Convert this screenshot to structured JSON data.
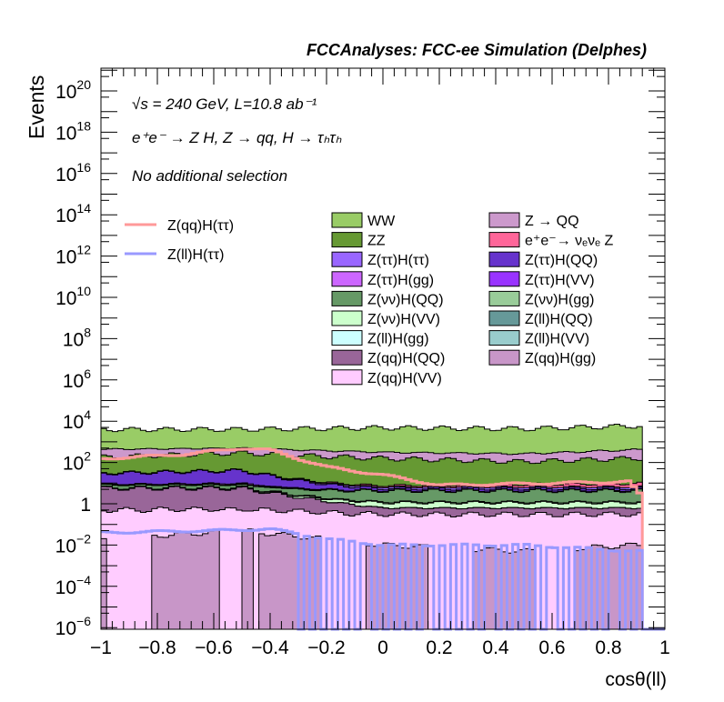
{
  "chart_data": {
    "type": "bar",
    "stacked": true,
    "title": "FCCAnalyses: FCC-ee Simulation (Delphes)",
    "xlabel": "cosθ(ll)",
    "ylabel": "Events",
    "xlim": [
      -1,
      1
    ],
    "ylim": [
      1e-06,
      1e+21
    ],
    "yscale": "log",
    "bins": 100,
    "xtick_labels": [
      "−1",
      "−0.8",
      "−0.6",
      "−0.4",
      "−0.2",
      "0",
      "0.2",
      "0.4",
      "0.6",
      "0.8",
      "1"
    ],
    "xticks": [
      -1,
      -0.8,
      -0.6,
      -0.4,
      -0.2,
      0,
      0.2,
      0.4,
      0.6,
      0.8,
      1
    ],
    "ytick_exponents": [
      -6,
      -4,
      -2,
      0,
      2,
      4,
      6,
      8,
      10,
      12,
      14,
      16,
      18,
      20
    ],
    "annotations": {
      "lumi": "√s = 240 GeV, L=10.8 ab⁻¹",
      "process": "e⁺e⁻ → Z H, Z → qq, H → τₕτₕ",
      "selection": "No additional selection"
    },
    "knots_x": [
      -1,
      -0.5,
      0,
      0.5,
      0.9
    ],
    "stack_bottom_to_top": [
      {
        "name": "Z(qq)H(gg)",
        "color": "#c896c8",
        "values": [
          0.02,
          0.05,
          0.01,
          0.005,
          0.01
        ]
      },
      {
        "name": "Z(qq)H(VV)",
        "color": "#ffccff",
        "values": [
          0.5,
          0.5,
          0.3,
          0.3,
          0.3
        ]
      },
      {
        "name": "Z(qq)H(QQ)",
        "color": "#996699",
        "values": [
          5,
          5,
          0.3,
          0.3,
          0.3
        ]
      },
      {
        "name": "Z(ll)H(VV)",
        "color": "#ccffff",
        "values": [
          0.005,
          0.005,
          0.002,
          0.002,
          0.002
        ]
      },
      {
        "name": "Z(ll)H(gg)",
        "color": "#99cccc",
        "values": [
          0.002,
          0.003,
          0.001,
          0.001,
          0.001
        ]
      },
      {
        "name": "Z(ll)H(QQ)",
        "color": "#669999",
        "values": [
          0.003,
          0.003,
          0.001,
          0.001,
          0.001
        ]
      },
      {
        "name": "Z(νν)H(VV)",
        "color": "#ccffcc",
        "values": [
          0.3,
          0.3,
          0.5,
          0.5,
          0.5
        ]
      },
      {
        "name": "Z(νν)H(gg)",
        "color": "#99cc99",
        "values": [
          0.1,
          0.3,
          0.1,
          0.1,
          0.1
        ]
      },
      {
        "name": "Z(νν)H(QQ)",
        "color": "#669966",
        "values": [
          2,
          2,
          3,
          3,
          3
        ]
      },
      {
        "name": "Z(ττ)H(VV)",
        "color": "#9933ff",
        "values": [
          0.3,
          0.5,
          0.2,
          0.2,
          0.3
        ]
      },
      {
        "name": "Z(ττ)H(gg)",
        "color": "#cc66ff",
        "values": [
          0.5,
          1,
          0.05,
          0.02,
          0.02
        ]
      },
      {
        "name": "Z(ττ)H(QQ)",
        "color": "#6633cc",
        "values": [
          20,
          30,
          1,
          1,
          1
        ]
      },
      {
        "name": "Z(ττ)H(ττ)",
        "color": "#9966ff",
        "values": [
          1,
          1,
          1,
          1,
          1
        ]
      },
      {
        "name": "e⁺e⁻→ νₑνₑ Z",
        "color": "#ff6699",
        "values": [
          1,
          1,
          1,
          2,
          3
        ]
      },
      {
        "name": "ZZ",
        "color": "#669933",
        "values": [
          150,
          250,
          150,
          100,
          150
        ]
      },
      {
        "name": "Z → QQ",
        "color": "#cc99cc",
        "values": [
          250,
          200,
          150,
          150,
          250
        ]
      },
      {
        "name": "WW",
        "color": "#99cc66",
        "values": [
          3500,
          3500,
          4500,
          4000,
          5500
        ]
      }
    ],
    "lines": [
      {
        "name": "Z(qq)H(ττ)",
        "color": "#ff9999",
        "knots_x": [
          -1,
          -0.7,
          -0.5,
          -0.4,
          -0.2,
          0,
          0.2,
          0.6,
          0.88,
          0.9
        ],
        "values": [
          150,
          250,
          500,
          400,
          60,
          25,
          8,
          10,
          12,
          3
        ]
      },
      {
        "name": "Z(ll)H(ττ)",
        "color": "#9999ff",
        "knots_x": [
          -1,
          -0.6,
          -0.4,
          -0.2,
          0,
          0.5,
          0.9
        ],
        "values": [
          0.04,
          0.05,
          0.06,
          0.02,
          0.01,
          0.01,
          0.005
        ]
      }
    ],
    "legend": {
      "lines_placement": "top-left",
      "lines_labels": [
        "Z(qq)H(ττ)",
        "Z(ll)H(ττ)"
      ],
      "stack_placement": "top-right",
      "stack_labels": [
        "WW",
        "Z → QQ",
        "ZZ",
        "e⁺e⁻→ νₑνₑ Z",
        "Z(ττ)H(ττ)",
        "Z(ττ)H(QQ)",
        "Z(ττ)H(gg)",
        "Z(ττ)H(VV)",
        "Z(νν)H(QQ)",
        "Z(νν)H(gg)",
        "Z(νν)H(VV)",
        "Z(ll)H(QQ)",
        "Z(ll)H(gg)",
        "Z(ll)H(VV)",
        "Z(qq)H(QQ)",
        "Z(qq)H(gg)",
        "Z(qq)H(VV)"
      ],
      "stack_colors": [
        "#99cc66",
        "#cc99cc",
        "#669933",
        "#ff6699",
        "#9966ff",
        "#6633cc",
        "#cc66ff",
        "#9933ff",
        "#669966",
        "#99cc99",
        "#ccffcc",
        "#669999",
        "#ccffff",
        "#99cccc",
        "#996699",
        "#c896c8",
        "#ffccff"
      ]
    }
  }
}
